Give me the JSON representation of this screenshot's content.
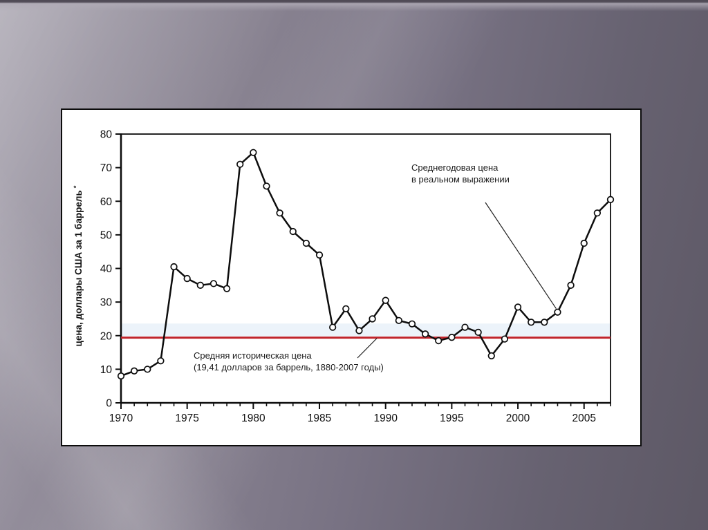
{
  "chart_data": {
    "type": "line",
    "title": "",
    "ylabel": "цена, доллары США за 1 баррель",
    "ylabel_superscript": "*",
    "xlabel": "",
    "xlim": [
      1970,
      2007
    ],
    "ylim": [
      0,
      80
    ],
    "grid": false,
    "legend": "none",
    "marker": "circle-open",
    "line_color": "#0d0d0d",
    "y_ticks": [
      0,
      10,
      20,
      30,
      40,
      50,
      60,
      70,
      80
    ],
    "x_ticks_major": [
      1970,
      1975,
      1980,
      1985,
      1990,
      1995,
      2000,
      2005
    ],
    "x": [
      1970,
      1971,
      1972,
      1973,
      1974,
      1975,
      1976,
      1977,
      1978,
      1979,
      1980,
      1981,
      1982,
      1983,
      1984,
      1985,
      1986,
      1987,
      1988,
      1989,
      1990,
      1991,
      1992,
      1993,
      1994,
      1995,
      1996,
      1997,
      1998,
      1999,
      2000,
      2001,
      2002,
      2003,
      2004,
      2005,
      2006,
      2007
    ],
    "values": [
      8,
      9.5,
      10,
      12.5,
      40.5,
      37,
      35,
      35.5,
      34,
      71,
      74.5,
      64.5,
      56.5,
      51,
      47.5,
      44,
      22.5,
      28,
      21.5,
      25,
      30.5,
      24.5,
      23.5,
      20.5,
      18.5,
      19.5,
      22.5,
      21,
      14,
      19,
      28.5,
      24,
      24,
      27,
      35,
      47.5,
      56.5,
      60.5
    ],
    "reference_line": {
      "value": 19.41,
      "color": "#c0232a"
    },
    "annotations": [
      {
        "lines": [
          "Среднегодовая цена",
          "в реальном выражении"
        ],
        "target_year": 2003
      },
      {
        "lines": [
          "Средняя историческая цена",
          "(19,41 долларов за баррель, 1880-2007 годы)"
        ],
        "target": "reference_line"
      }
    ]
  }
}
